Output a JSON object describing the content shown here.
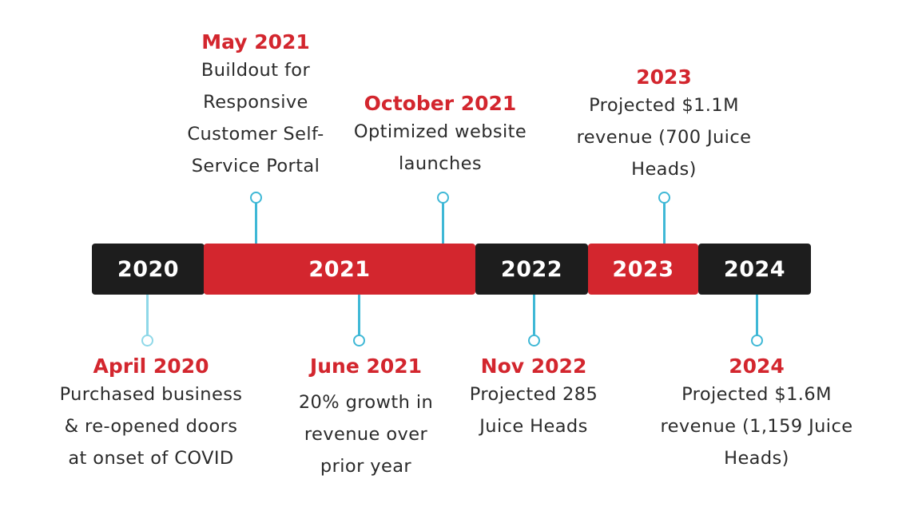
{
  "timeline": {
    "segments": [
      {
        "label": "2020",
        "color": "#1d1d1d"
      },
      {
        "label": "2021",
        "color": "#d3262e"
      },
      {
        "label": "2022",
        "color": "#1d1d1d"
      },
      {
        "label": "2023",
        "color": "#d3262e"
      },
      {
        "label": "2024",
        "color": "#1d1d1d"
      }
    ],
    "accent_color": "#d3262e",
    "connector_color": "#3fb8d6"
  },
  "events_top": [
    {
      "date": "May 2021",
      "lines": [
        "Buildout for",
        "Responsive",
        "Customer Self-",
        "Service Portal"
      ]
    },
    {
      "date": "October 2021",
      "lines": [
        "Optimized website",
        "launches"
      ]
    },
    {
      "date": "2023",
      "lines": [
        "Projected $1.1M",
        "revenue (700 Juice",
        "Heads)"
      ]
    }
  ],
  "events_bottom": [
    {
      "date": "April 2020",
      "lines": [
        "Purchased business",
        "& re-opened doors",
        "at onset of COVID"
      ]
    },
    {
      "date": "June 2021",
      "lines": [
        "20% growth in",
        "revenue over",
        "prior year"
      ]
    },
    {
      "date": "Nov 2022",
      "lines": [
        "Projected 285",
        "Juice Heads"
      ]
    },
    {
      "date": "2024",
      "lines": [
        "Projected $1.6M",
        "revenue (1,159 Juice",
        "Heads)"
      ]
    }
  ]
}
